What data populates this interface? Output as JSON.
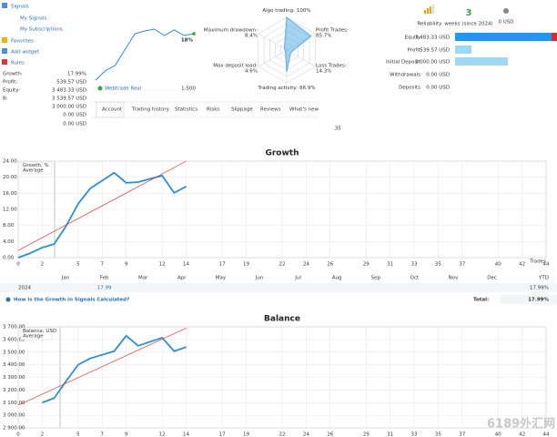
{
  "sidebar": {
    "items": [
      "Signals",
      "My Signals",
      "My Subscriptions",
      "Favorites",
      "Add widget",
      "Rules"
    ]
  },
  "account_stats": {
    "rows": [
      [
        "Growth:",
        "17.99%"
      ],
      [
        "Profit:",
        "539.57 USD"
      ],
      [
        "Equity:",
        "3 483.33 USD"
      ],
      [
        "B:",
        "3 539.57 USD"
      ]
    ],
    "extra_values": [
      "3 000.00 USD",
      "0.00 USD",
      "0.00 USD"
    ]
  },
  "provider": {
    "broker": "Webtrade Real",
    "leverage": "1:500"
  },
  "reliability": {
    "label": "Reliability",
    "weeks": "3",
    "weeks_label": "weeks (since 2024)",
    "cost": "0 USD"
  },
  "summary": {
    "rows": [
      [
        "Equity",
        "3 483.33 USD"
      ],
      [
        "Profit",
        "539.57 USD"
      ],
      [
        "Initial Deposit",
        "3 000.00 USD"
      ],
      [
        "Withdrawals",
        "0.00 USD"
      ],
      [
        "Deposits",
        "0.00 USD"
      ]
    ]
  },
  "tabs": [
    "Account",
    "Trading history",
    "Statistics",
    "Risks",
    "Slippage",
    "Reviews",
    "What's new"
  ],
  "fragment": ".35",
  "chart_data": [
    {
      "type": "line",
      "color": "#2a8fd8",
      "values": [
        0.7,
        4.4,
        6.5,
        12.7,
        18.9,
        20,
        20.7,
        18.2,
        20.4,
        18.2,
        18.9
      ],
      "annotation": "18%"
    },
    {
      "type": "radar",
      "color": "#5ab0e8",
      "categories": [
        "Algo trading:",
        "Profit Trades:",
        "Loss Trades:",
        "Trading activity:",
        "Max deposit load:",
        "Maximum drawdown:"
      ],
      "values": [
        100,
        85.7,
        14.3,
        66.9,
        4.6,
        8.4
      ],
      "value_labels": [
        "100%",
        "85.7%",
        "14.3%",
        "66.9%",
        "4.6%",
        "8.4%"
      ]
    },
    {
      "type": "line",
      "title": "Growth",
      "x_label": "Trades",
      "grid": true,
      "xlim": [
        0,
        44
      ],
      "xticks": [
        0,
        2,
        5,
        7,
        9,
        12,
        14,
        17,
        19,
        22,
        24,
        26,
        29,
        31,
        33,
        35,
        37,
        40,
        42,
        44
      ],
      "ylim": [
        0,
        24
      ],
      "yticks": [
        {
          "value": 0,
          "label": "0.00"
        },
        {
          "value": 4,
          "label": "4.00"
        },
        {
          "value": 8,
          "label": "8.00"
        },
        {
          "value": 12,
          "label": "12.00"
        },
        {
          "value": 16,
          "label": "16.00"
        },
        {
          "value": 20,
          "label": "20.00"
        },
        {
          "value": 24,
          "label": "24.00"
        }
      ],
      "series": [
        {
          "name": "Growth, %",
          "color": "#2a8fd8",
          "x": [
            0,
            1,
            2,
            3,
            4,
            5,
            6,
            8,
            9,
            10,
            12,
            13,
            14
          ],
          "values": [
            0,
            1.1,
            2.5,
            3.4,
            7.9,
            13.4,
            17.2,
            21.1,
            18.6,
            18.8,
            20.4,
            16.1,
            17.7
          ]
        },
        {
          "name": "Average",
          "color": "#e53935",
          "x": [
            0,
            14
          ],
          "values": [
            1.8,
            24
          ]
        }
      ]
    },
    {
      "type": "line",
      "title": "Balance",
      "grid": true,
      "xlim": [
        0,
        44
      ],
      "xticks": [
        0,
        2,
        5,
        7,
        9,
        12,
        14,
        17,
        19,
        22,
        24,
        26,
        29,
        31,
        33,
        35,
        37,
        40,
        42,
        44
      ],
      "ylim": [
        2900,
        3700
      ],
      "yticks": [
        {
          "value": 2900,
          "label": "2 900.00"
        },
        {
          "value": 3000,
          "label": "3 000.00"
        },
        {
          "value": 3100,
          "label": "3 100.00"
        },
        {
          "value": 3200,
          "label": "3 200.00"
        },
        {
          "value": 3300,
          "label": "3 300.00"
        },
        {
          "value": 3400,
          "label": "3 400.00"
        },
        {
          "value": 3500,
          "label": "3 500.00"
        },
        {
          "value": 3600,
          "label": "3 600.00"
        },
        {
          "value": 3700,
          "label": "3 700.00"
        }
      ],
      "series": [
        {
          "name": "Balance, USD",
          "color": "#2a8fd8",
          "x": [
            2,
            3,
            4,
            5,
            6,
            8,
            9,
            10,
            12,
            13,
            14
          ],
          "values": [
            3100,
            3136,
            3271,
            3400,
            3450,
            3507,
            3629,
            3550,
            3614,
            3507,
            3540
          ]
        },
        {
          "name": "Average",
          "color": "#e53935",
          "x": [
            0,
            14
          ],
          "values": [
            3080,
            3690
          ]
        }
      ]
    }
  ],
  "growth_table": {
    "months": [
      "Jan",
      "Feb",
      "Mar",
      "Apr",
      "May",
      "Jun",
      "Jul",
      "Aug",
      "Sep",
      "Oct",
      "Nov",
      "Dec",
      "YTD"
    ],
    "year": "2024",
    "feb_value": "17.99",
    "ytd": "17.99%",
    "help_link": "How is the Growth in Signals Calculated?",
    "total_label": "Total:",
    "total": "17.99%"
  },
  "watermark": "6189外汇网"
}
